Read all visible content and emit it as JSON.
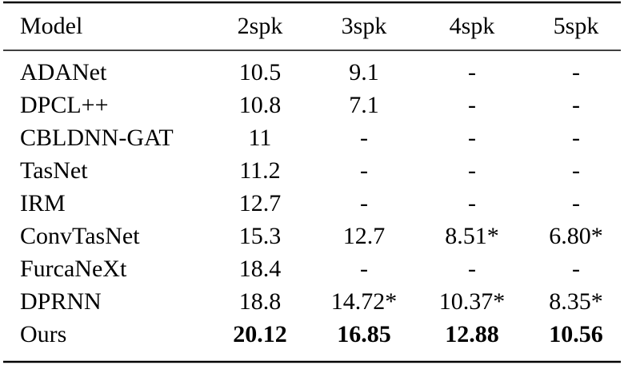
{
  "table": {
    "header": [
      "Model",
      "2spk",
      "3spk",
      "4spk",
      "5spk"
    ],
    "rows": [
      [
        "ADANet",
        "10.5",
        "9.1",
        "-",
        "-"
      ],
      [
        "DPCL++",
        "10.8",
        "7.1",
        "-",
        "-"
      ],
      [
        "CBLDNN-GAT",
        "11",
        "-",
        "-",
        "-"
      ],
      [
        "TasNet",
        "11.2",
        "-",
        "-",
        "-"
      ],
      [
        "IRM",
        "12.7",
        "-",
        "-",
        "-"
      ],
      [
        "ConvTasNet",
        "15.3",
        "12.7",
        "8.51*",
        "6.80*"
      ],
      [
        "FurcaNeXt",
        "18.4",
        "-",
        "-",
        "-"
      ],
      [
        "DPRNN",
        "18.8",
        "14.72*",
        "10.37*",
        "8.35*"
      ],
      [
        "Ours",
        "20.12",
        "16.85",
        "12.88",
        "10.56"
      ]
    ]
  }
}
